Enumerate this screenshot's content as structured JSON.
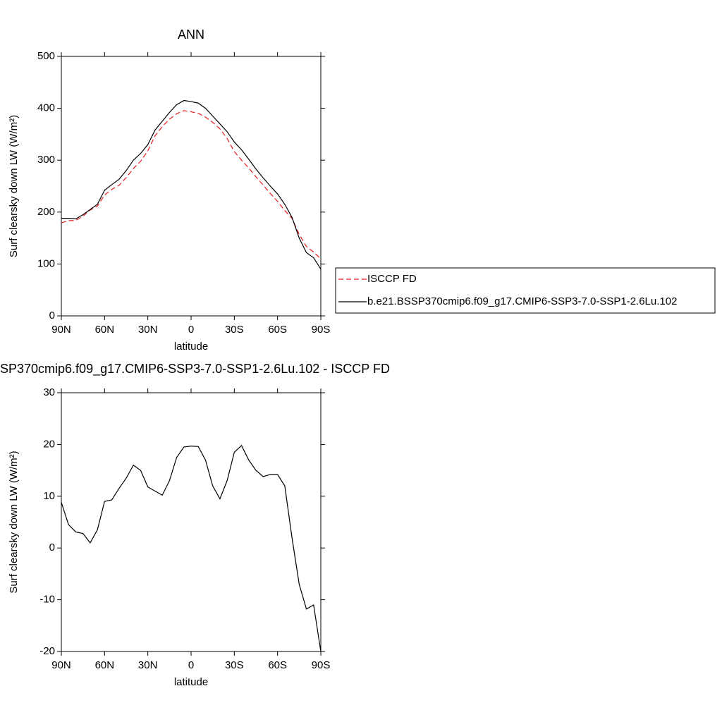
{
  "chart_data": [
    {
      "type": "line",
      "title": "ANN",
      "xlabel": "latitude",
      "ylabel": "Surf clearsky down LW (W/m²)",
      "xlim": [
        90,
        -90
      ],
      "xticks": [
        {
          "value": 90,
          "label": "90N"
        },
        {
          "value": 60,
          "label": "60N"
        },
        {
          "value": 30,
          "label": "30N"
        },
        0,
        {
          "value": -30,
          "label": "30S"
        },
        {
          "value": -60,
          "label": "60S"
        },
        {
          "value": -90,
          "label": "90S"
        }
      ],
      "ylim": [
        0,
        500
      ],
      "yticks": [
        0,
        100,
        200,
        300,
        400,
        500
      ],
      "x": [
        90,
        85,
        80,
        75,
        70,
        65,
        60,
        55,
        50,
        45,
        40,
        35,
        30,
        25,
        20,
        15,
        10,
        5,
        0,
        -5,
        -10,
        -15,
        -20,
        -25,
        -30,
        -35,
        -40,
        -45,
        -50,
        -55,
        -60,
        -65,
        -70,
        -75,
        -80,
        -85,
        -90
      ],
      "legend": "right",
      "series": [
        {
          "name": "ISCCP FD",
          "color": "#e41a1c",
          "linestyle": "dashed",
          "values": [
            179.2,
            183.5,
            183.9,
            192.2,
            204,
            211.5,
            233,
            243.7,
            251.5,
            266.5,
            284,
            298,
            318,
            347,
            364.8,
            379,
            389.5,
            395.5,
            393.3,
            390.4,
            383,
            373,
            360.5,
            342,
            316.5,
            300.2,
            285,
            268,
            252.2,
            235.8,
            220.8,
            203,
            188,
            157,
            133.8,
            123,
            110
          ]
        },
        {
          "name": "b.e21.BSSP370cmip6.f09_g17.CMIP6-SSP3-7.0-SSP1-2.6Lu.102",
          "color": "#000000",
          "linestyle": "solid",
          "values": [
            188,
            188,
            187,
            195,
            205,
            215,
            242,
            253,
            263,
            280,
            300,
            313,
            330,
            358,
            375,
            392,
            407,
            415,
            413,
            410,
            400,
            385,
            370,
            355,
            335,
            320,
            302,
            283,
            266,
            250,
            235,
            215,
            190,
            150,
            122,
            112,
            90
          ]
        }
      ]
    },
    {
      "type": "line",
      "title": "SP370cmip6.f09_g17.CMIP6-SSP3-7.0-SSP1-2.6Lu.102 - ISCCP FD",
      "xlabel": "latitude",
      "ylabel": "Surf clearsky down LW (W/m²)",
      "xlim": [
        90,
        -90
      ],
      "xticks": [
        {
          "value": 90,
          "label": "90N"
        },
        {
          "value": 60,
          "label": "60N"
        },
        {
          "value": 30,
          "label": "30N"
        },
        0,
        {
          "value": -30,
          "label": "30S"
        },
        {
          "value": -60,
          "label": "60S"
        },
        {
          "value": -90,
          "label": "90S"
        }
      ],
      "ylim": [
        -20,
        30
      ],
      "yticks": [
        -20,
        -10,
        0,
        10,
        20,
        30
      ],
      "x": [
        90,
        85,
        80,
        75,
        70,
        65,
        60,
        55,
        50,
        45,
        40,
        35,
        30,
        25,
        20,
        15,
        10,
        5,
        0,
        -5,
        -10,
        -15,
        -20,
        -25,
        -30,
        -35,
        -40,
        -45,
        -50,
        -55,
        -60,
        -65,
        -70,
        -75,
        -80,
        -85,
        -90
      ],
      "color": "#000000",
      "values": [
        8.8,
        4.5,
        3.1,
        2.8,
        1.0,
        3.5,
        9.0,
        9.3,
        11.5,
        13.5,
        16.0,
        15.0,
        11.8,
        11.0,
        10.2,
        13.0,
        17.5,
        19.5,
        19.7,
        19.6,
        17,
        12,
        9.5,
        13,
        18.5,
        19.8,
        17,
        15,
        13.8,
        14.2,
        14.2,
        12,
        2,
        -7,
        -11.8,
        -11,
        -20
      ]
    }
  ]
}
